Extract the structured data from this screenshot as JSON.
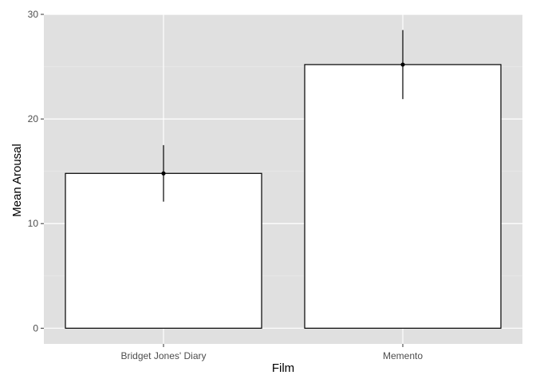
{
  "chart_data": {
    "type": "bar",
    "title": "",
    "xlabel": "Film",
    "ylabel": "Mean Arousal",
    "categories": [
      "Bridget Jones' Diary",
      "Memento"
    ],
    "values": [
      14.8,
      25.2
    ],
    "error_bars": [
      {
        "low": 12.1,
        "high": 17.5
      },
      {
        "low": 21.9,
        "high": 28.5
      }
    ],
    "ylim": [
      -1.5,
      30
    ],
    "yticks": [
      0,
      10,
      20,
      30
    ],
    "ytick_labels": [
      "0",
      "10",
      "20",
      "30"
    ],
    "grid": true,
    "legend": "none",
    "colors": {
      "panel": "#e0e0e0",
      "grid_major": "#ffffff",
      "grid_minor": "#ebebeb",
      "bar_fill": "#ffffff",
      "bar_stroke": "#000000",
      "tick_text": "#4d4d4d"
    }
  }
}
